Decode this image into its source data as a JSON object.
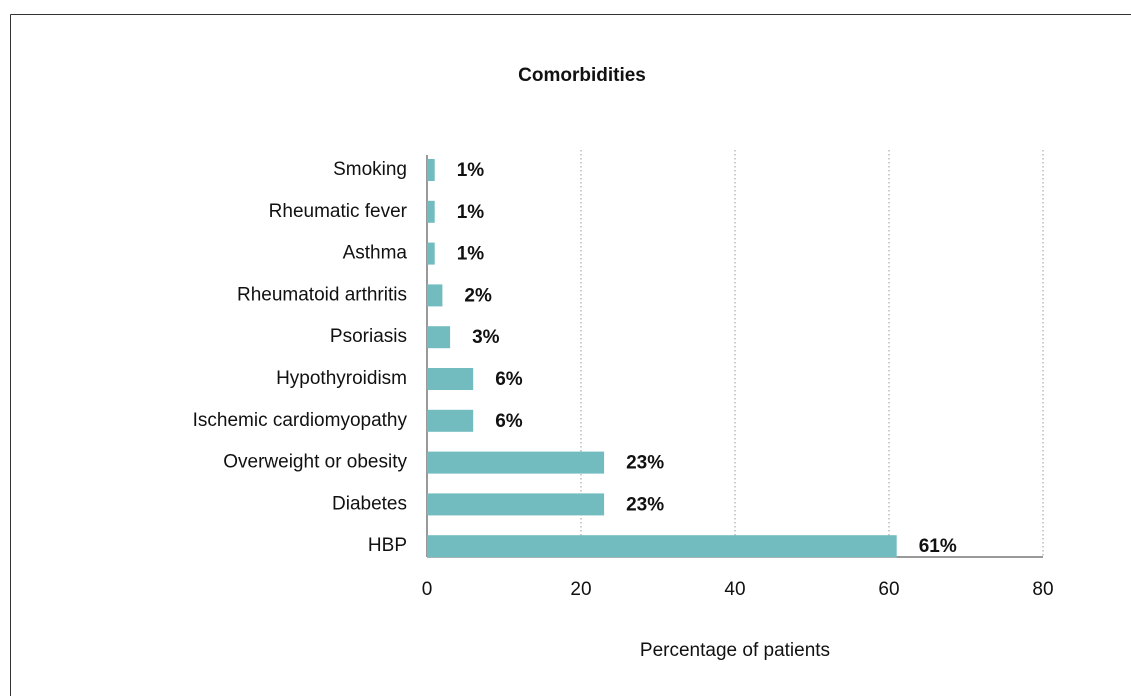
{
  "chart_data": {
    "type": "bar",
    "orientation": "horizontal",
    "title": "Comorbidities",
    "x_label": "Percentage of patients",
    "categories": [
      "Smoking",
      "Rheumatic fever",
      "Asthma",
      "Rheumatoid arthritis",
      "Psoriasis",
      "Hypothyroidism",
      "Ischemic cardiomyopathy",
      "Overweight or obesity",
      "Diabetes",
      "HBP"
    ],
    "values": [
      1,
      1,
      1,
      2,
      3,
      6,
      6,
      23,
      23,
      61
    ],
    "value_labels": [
      "1%",
      "1%",
      "1%",
      "2%",
      "3%",
      "6%",
      "6%",
      "23%",
      "23%",
      "61%"
    ],
    "color": "#72bcc0",
    "xlim": [
      0,
      80
    ],
    "xticks": [
      0,
      20,
      40,
      60,
      80
    ],
    "grid": true
  }
}
